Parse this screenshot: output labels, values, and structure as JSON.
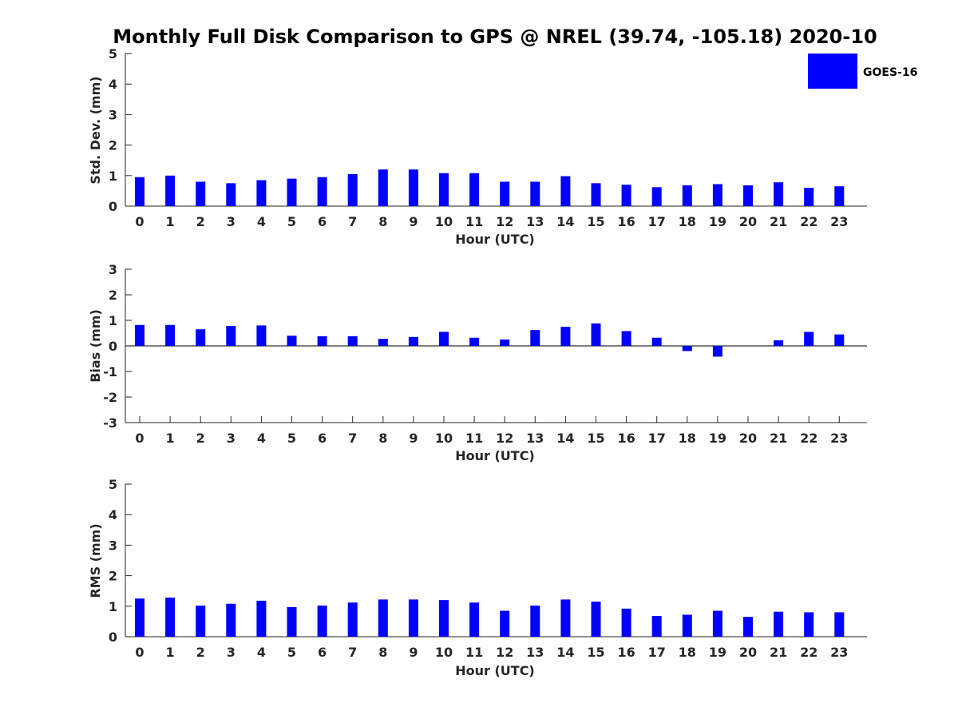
{
  "chart_data": {
    "title": "Monthly Full Disk Comparison to GPS @ NREL (39.74, -105.18) 2020-10",
    "legend": {
      "entries": [
        "GOES-16"
      ],
      "placement": "top-right"
    },
    "series_color": "#0000ff",
    "panels": [
      {
        "type": "bar",
        "ylabel": "Std. Dev. (mm)",
        "xlabel": "Hour (UTC)",
        "ylim": [
          0,
          5
        ],
        "yticks": [
          "0",
          "1",
          "2",
          "3",
          "4",
          "5"
        ],
        "categories": [
          "0",
          "1",
          "2",
          "3",
          "4",
          "5",
          "6",
          "7",
          "8",
          "9",
          "10",
          "11",
          "12",
          "13",
          "14",
          "15",
          "16",
          "17",
          "18",
          "19",
          "20",
          "21",
          "22",
          "23"
        ],
        "series": [
          {
            "name": "GOES-16",
            "values": [
              0.95,
              1.0,
              0.8,
              0.75,
              0.85,
              0.9,
              0.95,
              1.05,
              1.2,
              1.2,
              1.08,
              1.08,
              0.8,
              0.8,
              0.98,
              0.75,
              0.7,
              0.62,
              0.68,
              0.72,
              0.68,
              0.78,
              0.6,
              0.65
            ]
          }
        ]
      },
      {
        "type": "bar",
        "ylabel": "Bias (mm)",
        "xlabel": "Hour (UTC)",
        "ylim": [
          -3,
          3
        ],
        "yticks": [
          "-3",
          "-2",
          "-1",
          "0",
          "1",
          "2",
          "3"
        ],
        "categories": [
          "0",
          "1",
          "2",
          "3",
          "4",
          "5",
          "6",
          "7",
          "8",
          "9",
          "10",
          "11",
          "12",
          "13",
          "14",
          "15",
          "16",
          "17",
          "18",
          "19",
          "20",
          "21",
          "22",
          "23"
        ],
        "series": [
          {
            "name": "GOES-16",
            "values": [
              0.82,
              0.82,
              0.65,
              0.78,
              0.8,
              0.4,
              0.38,
              0.38,
              0.28,
              0.35,
              0.55,
              0.32,
              0.25,
              0.62,
              0.75,
              0.88,
              0.58,
              0.32,
              -0.2,
              -0.42,
              0.0,
              0.22,
              0.55,
              0.45
            ]
          }
        ]
      },
      {
        "type": "bar",
        "ylabel": "RMS (mm)",
        "xlabel": "Hour (UTC)",
        "ylim": [
          0,
          5
        ],
        "yticks": [
          "0",
          "1",
          "2",
          "3",
          "4",
          "5"
        ],
        "categories": [
          "0",
          "1",
          "2",
          "3",
          "4",
          "5",
          "6",
          "7",
          "8",
          "9",
          "10",
          "11",
          "12",
          "13",
          "14",
          "15",
          "16",
          "17",
          "18",
          "19",
          "20",
          "21",
          "22",
          "23"
        ],
        "series": [
          {
            "name": "GOES-16",
            "values": [
              1.25,
              1.28,
              1.02,
              1.08,
              1.18,
              0.97,
              1.02,
              1.12,
              1.22,
              1.22,
              1.2,
              1.12,
              0.85,
              1.02,
              1.22,
              1.15,
              0.92,
              0.68,
              0.72,
              0.85,
              0.65,
              0.82,
              0.8,
              0.8
            ]
          }
        ]
      }
    ]
  }
}
